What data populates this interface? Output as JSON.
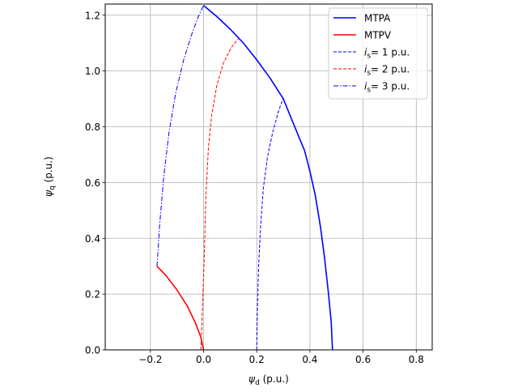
{
  "chart_data": {
    "type": "line",
    "xlabel": {
      "symbol": "ψ",
      "sub": "d",
      "unit": " (p.u.)"
    },
    "ylabel": {
      "symbol": "ψ",
      "sub": "q",
      "unit": " (p.u.)"
    },
    "xlim": [
      -0.37,
      0.86
    ],
    "ylim": [
      0.0,
      1.24
    ],
    "grid": true,
    "legend_position": "top-right",
    "x_ticks": [
      -0.2,
      0.0,
      0.2,
      0.4,
      0.6,
      0.8
    ],
    "x_tick_labels": [
      "−0.2",
      "0.0",
      "0.2",
      "0.4",
      "0.6",
      "0.8"
    ],
    "y_ticks": [
      0.0,
      0.2,
      0.4,
      0.6,
      0.8,
      1.0,
      1.2
    ],
    "y_tick_labels": [
      "0.0",
      "0.2",
      "0.4",
      "0.6",
      "0.8",
      "1.0",
      "1.2"
    ],
    "series": [
      {
        "name": "MTPA",
        "style": "solid",
        "color": "#0000ff",
        "legend": {
          "italic": "",
          "sub": "",
          "text": "MTPA"
        },
        "x": [
          0.0,
          0.05,
          0.1,
          0.15,
          0.2,
          0.25,
          0.3,
          0.33,
          0.36,
          0.38,
          0.4,
          0.42,
          0.44,
          0.455,
          0.47,
          0.48,
          0.485
        ],
        "y": [
          1.235,
          1.195,
          1.15,
          1.1,
          1.04,
          0.975,
          0.9,
          0.83,
          0.76,
          0.715,
          0.64,
          0.555,
          0.44,
          0.33,
          0.2,
          0.1,
          0.0
        ]
      },
      {
        "name": "MTPV",
        "style": "solid",
        "color": "#ff0000",
        "legend": {
          "italic": "",
          "sub": "",
          "text": "MTPV"
        },
        "x": [
          -0.175,
          -0.14,
          -0.1,
          -0.06,
          -0.03,
          -0.01,
          0.0
        ],
        "y": [
          0.3,
          0.265,
          0.215,
          0.155,
          0.095,
          0.045,
          0.0
        ]
      },
      {
        "name": "is = 1 p.u.",
        "style": "dashed",
        "color": "#0000ff",
        "legend": {
          "italic": "i",
          "sub": "s",
          "text": "=  1 p.u."
        },
        "x": [
          0.2,
          0.202,
          0.207,
          0.215,
          0.225,
          0.24,
          0.26,
          0.28,
          0.3
        ],
        "y": [
          0.0,
          0.13,
          0.3,
          0.45,
          0.58,
          0.69,
          0.78,
          0.85,
          0.905
        ]
      },
      {
        "name": "is = 2 p.u.",
        "style": "dashed",
        "color": "#ff0000",
        "legend": {
          "italic": "i",
          "sub": "s",
          "text": "=  2 p.u."
        },
        "x": [
          -0.01,
          0.002,
          0.008,
          0.018,
          0.03,
          0.05,
          0.075,
          0.105,
          0.13
        ],
        "y": [
          0.0,
          0.32,
          0.54,
          0.72,
          0.84,
          0.95,
          1.03,
          1.085,
          1.115
        ]
      },
      {
        "name": "is = 3 p.u.",
        "style": "dashdot",
        "color": "#0000ff",
        "legend": {
          "italic": "i",
          "sub": "s",
          "text": "=  3 p.u."
        },
        "x": [
          -0.175,
          -0.165,
          -0.15,
          -0.13,
          -0.105,
          -0.075,
          -0.045,
          -0.02,
          0.0
        ],
        "y": [
          0.3,
          0.45,
          0.62,
          0.78,
          0.92,
          1.04,
          1.13,
          1.195,
          1.235
        ]
      }
    ]
  }
}
